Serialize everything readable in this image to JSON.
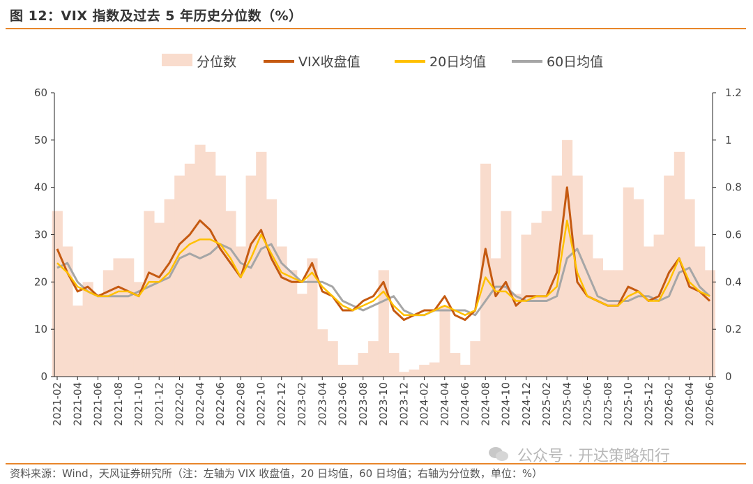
{
  "header": {
    "title": "图 12：VIX 指数及过去 5 年历史分位数（%）"
  },
  "footer": {
    "source": "资料来源：Wind，天风证券研究所（注：左轴为 VIX 收盘值，20 日均值，60 日均值；右轴为分位数，单位：%）",
    "watermark": "公众号 · 开达策略知行"
  },
  "colors": {
    "accent": "#e8862a",
    "percentile": "#f9dccd",
    "vix": "#c55a11",
    "ma20": "#ffc000",
    "ma60": "#a6a6a6"
  },
  "chart_data": {
    "type": "line",
    "legend": [
      {
        "name": "分位数",
        "kind": "area"
      },
      {
        "name": "VIX收盘值",
        "kind": "line"
      },
      {
        "name": "20日均值",
        "kind": "line"
      },
      {
        "name": "60日均值",
        "kind": "line"
      }
    ],
    "x_ticks": [
      "2021-02",
      "2021-04",
      "2021-06",
      "2021-08",
      "2021-10",
      "2021-12",
      "2022-02",
      "2022-04",
      "2022-06",
      "2022-08",
      "2022-10",
      "2022-12",
      "2023-02",
      "2023-04",
      "2023-06",
      "2023-08",
      "2023-10",
      "2023-12",
      "2024-02",
      "2024-04",
      "2024-06",
      "2024-08",
      "2024-10",
      "2024-12",
      "2025-02",
      "2025-04",
      "2025-06",
      "2025-08",
      "2025-10",
      "2025-12",
      "2026-02",
      "2026-04",
      "2026-06"
    ],
    "y_left": {
      "min": 0,
      "max": 60,
      "ticks": [
        0,
        10,
        20,
        30,
        40,
        50,
        60
      ]
    },
    "y_right": {
      "min": 0,
      "max": 1.2,
      "ticks": [
        "0",
        "0.2",
        "0.4",
        "0.6",
        "0.8",
        "1",
        "1.2"
      ]
    },
    "series": [
      {
        "name": "VIX收盘值",
        "axis": "left",
        "x": [
          "2021-02",
          "2021-03",
          "2021-04",
          "2021-05",
          "2021-06",
          "2021-07",
          "2021-08",
          "2021-09",
          "2021-10",
          "2021-11",
          "2021-12",
          "2022-01",
          "2022-02",
          "2022-03",
          "2022-04",
          "2022-05",
          "2022-06",
          "2022-07",
          "2022-08",
          "2022-09",
          "2022-10",
          "2022-11",
          "2022-12",
          "2023-01",
          "2023-02",
          "2023-03",
          "2023-04",
          "2023-05",
          "2023-06",
          "2023-07",
          "2023-08",
          "2023-09",
          "2023-10",
          "2023-11",
          "2023-12",
          "2024-01",
          "2024-02",
          "2024-03",
          "2024-04",
          "2024-05",
          "2024-06",
          "2024-07",
          "2024-08",
          "2024-09",
          "2024-10",
          "2024-11",
          "2024-12",
          "2025-01",
          "2025-02",
          "2025-03",
          "2025-04",
          "2025-05",
          "2025-06",
          "2025-07",
          "2025-08",
          "2025-09",
          "2025-10",
          "2025-11",
          "2025-12",
          "2026-01",
          "2026-02",
          "2026-03",
          "2026-04",
          "2026-05",
          "2026-06"
        ],
        "values": [
          27,
          22,
          18,
          19,
          17,
          18,
          19,
          18,
          17,
          22,
          21,
          24,
          28,
          30,
          33,
          31,
          27,
          24,
          21,
          28,
          31,
          25,
          21,
          20,
          20,
          24,
          18,
          17,
          14,
          14,
          16,
          17,
          20,
          14,
          12,
          13,
          14,
          14,
          17,
          13,
          12,
          14,
          27,
          17,
          20,
          15,
          17,
          17,
          17,
          22,
          40,
          20,
          17,
          16,
          15,
          15,
          19,
          18,
          16,
          17,
          22,
          25,
          19,
          18,
          16
        ]
      },
      {
        "name": "20日均值",
        "axis": "left",
        "x": [
          "2021-02",
          "2021-03",
          "2021-04",
          "2021-05",
          "2021-06",
          "2021-07",
          "2021-08",
          "2021-09",
          "2021-10",
          "2021-11",
          "2021-12",
          "2022-01",
          "2022-02",
          "2022-03",
          "2022-04",
          "2022-05",
          "2022-06",
          "2022-07",
          "2022-08",
          "2022-09",
          "2022-10",
          "2022-11",
          "2022-12",
          "2023-01",
          "2023-02",
          "2023-03",
          "2023-04",
          "2023-05",
          "2023-06",
          "2023-07",
          "2023-08",
          "2023-09",
          "2023-10",
          "2023-11",
          "2023-12",
          "2024-01",
          "2024-02",
          "2024-03",
          "2024-04",
          "2024-05",
          "2024-06",
          "2024-07",
          "2024-08",
          "2024-09",
          "2024-10",
          "2024-11",
          "2024-12",
          "2025-01",
          "2025-02",
          "2025-03",
          "2025-04",
          "2025-05",
          "2025-06",
          "2025-07",
          "2025-08",
          "2025-09",
          "2025-10",
          "2025-11",
          "2025-12",
          "2026-01",
          "2026-02",
          "2026-03",
          "2026-04",
          "2026-05",
          "2026-06"
        ],
        "values": [
          24,
          22,
          19,
          18,
          17,
          17,
          18,
          18,
          17,
          20,
          20,
          22,
          26,
          28,
          29,
          29,
          28,
          25,
          21,
          25,
          30,
          26,
          22,
          21,
          20,
          22,
          19,
          17,
          15,
          14,
          15,
          16,
          18,
          15,
          13,
          13,
          13,
          14,
          15,
          14,
          13,
          14,
          21,
          18,
          18,
          16,
          16,
          17,
          17,
          19,
          33,
          22,
          17,
          16,
          15,
          15,
          17,
          18,
          16,
          16,
          20,
          25,
          20,
          18,
          17
        ]
      },
      {
        "name": "60日均值",
        "axis": "left",
        "x": [
          "2021-02",
          "2021-03",
          "2021-04",
          "2021-05",
          "2021-06",
          "2021-07",
          "2021-08",
          "2021-09",
          "2021-10",
          "2021-11",
          "2021-12",
          "2022-01",
          "2022-02",
          "2022-03",
          "2022-04",
          "2022-05",
          "2022-06",
          "2022-07",
          "2022-08",
          "2022-09",
          "2022-10",
          "2022-11",
          "2022-12",
          "2023-01",
          "2023-02",
          "2023-03",
          "2023-04",
          "2023-05",
          "2023-06",
          "2023-07",
          "2023-08",
          "2023-09",
          "2023-10",
          "2023-11",
          "2023-12",
          "2024-01",
          "2024-02",
          "2024-03",
          "2024-04",
          "2024-05",
          "2024-06",
          "2024-07",
          "2024-08",
          "2024-09",
          "2024-10",
          "2024-11",
          "2024-12",
          "2025-01",
          "2025-02",
          "2025-03",
          "2025-04",
          "2025-05",
          "2025-06",
          "2025-07",
          "2025-08",
          "2025-09",
          "2025-10",
          "2025-11",
          "2025-12",
          "2026-01",
          "2026-02",
          "2026-03",
          "2026-04",
          "2026-05",
          "2026-06"
        ],
        "values": [
          23,
          24,
          20,
          18,
          17,
          17,
          17,
          17,
          18,
          19,
          20,
          21,
          25,
          26,
          25,
          26,
          28,
          27,
          24,
          23,
          27,
          28,
          24,
          22,
          20,
          20,
          20,
          19,
          16,
          15,
          14,
          15,
          16,
          17,
          14,
          13,
          13,
          14,
          14,
          14,
          14,
          13,
          16,
          19,
          19,
          17,
          16,
          16,
          16,
          17,
          25,
          27,
          22,
          17,
          16,
          16,
          16,
          17,
          17,
          16,
          17,
          22,
          23,
          19,
          17
        ]
      },
      {
        "name": "分位数",
        "axis": "right",
        "x": [
          "2021-02",
          "2021-03",
          "2021-04",
          "2021-05",
          "2021-06",
          "2021-07",
          "2021-08",
          "2021-09",
          "2021-10",
          "2021-11",
          "2021-12",
          "2022-01",
          "2022-02",
          "2022-03",
          "2022-04",
          "2022-05",
          "2022-06",
          "2022-07",
          "2022-08",
          "2022-09",
          "2022-10",
          "2022-11",
          "2022-12",
          "2023-01",
          "2023-02",
          "2023-03",
          "2023-04",
          "2023-05",
          "2023-06",
          "2023-07",
          "2023-08",
          "2023-09",
          "2023-10",
          "2023-11",
          "2023-12",
          "2024-01",
          "2024-02",
          "2024-03",
          "2024-04",
          "2024-05",
          "2024-06",
          "2024-07",
          "2024-08",
          "2024-09",
          "2024-10",
          "2024-11",
          "2024-12",
          "2025-01",
          "2025-02",
          "2025-03",
          "2025-04",
          "2025-05",
          "2025-06",
          "2025-07",
          "2025-08",
          "2025-09",
          "2025-10",
          "2025-11",
          "2025-12",
          "2026-01",
          "2026-02",
          "2026-03",
          "2026-04",
          "2026-05",
          "2026-06"
        ],
        "values": [
          0.7,
          0.55,
          0.3,
          0.4,
          0.35,
          0.45,
          0.5,
          0.5,
          0.4,
          0.7,
          0.65,
          0.75,
          0.85,
          0.9,
          0.98,
          0.95,
          0.85,
          0.7,
          0.55,
          0.85,
          0.95,
          0.75,
          0.55,
          0.45,
          0.35,
          0.5,
          0.2,
          0.15,
          0.05,
          0.05,
          0.1,
          0.15,
          0.45,
          0.1,
          0.02,
          0.03,
          0.05,
          0.06,
          0.3,
          0.1,
          0.05,
          0.15,
          0.9,
          0.5,
          0.7,
          0.35,
          0.6,
          0.65,
          0.7,
          0.85,
          1.0,
          0.85,
          0.6,
          0.5,
          0.45,
          0.45,
          0.8,
          0.75,
          0.55,
          0.6,
          0.85,
          0.95,
          0.75,
          0.55,
          0.45
        ]
      }
    ]
  }
}
